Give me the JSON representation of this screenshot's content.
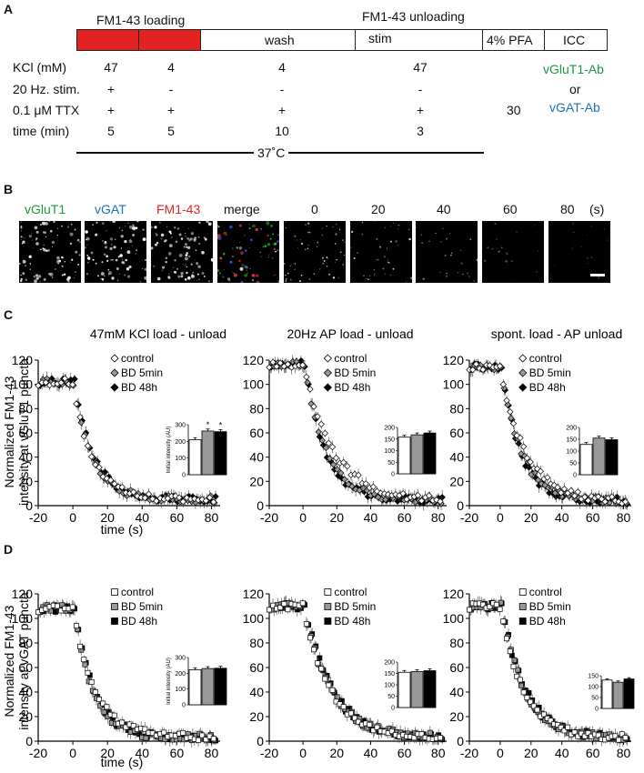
{
  "panelA": {
    "letter": "A",
    "loading_label": "FM1-43 loading",
    "unloading_label": "FM1-43 unloading",
    "boxes": [
      "",
      "",
      "wash",
      "stim",
      "4% PFA",
      "ICC"
    ],
    "row_labels": [
      "KCl (mM)",
      "20 Hz. stim.",
      "0.1 μM TTX",
      "time (min)"
    ],
    "columns": [
      [
        "47",
        "+",
        "+",
        "5"
      ],
      [
        "4",
        "-",
        "+",
        "5"
      ],
      [
        "4",
        "-",
        "+",
        "10"
      ],
      [
        "47",
        "-",
        "+",
        "3"
      ]
    ],
    "pfa_time": "30",
    "ab1": "vGluT1-Ab",
    "ab_or": "or",
    "ab2": "vGAT-Ab",
    "temperature": "37˚C",
    "colors": {
      "red": "#e32222",
      "green": "#1a9a3a",
      "blue": "#1f6fb5"
    }
  },
  "panelB": {
    "letter": "B",
    "labels": [
      "vGluT1",
      "vGAT",
      "FM1-43",
      "merge",
      "0",
      "20",
      "40",
      "60",
      "80"
    ],
    "unit": "(s)",
    "label_colors": [
      "#1a9a3a",
      "#1f6fb5",
      "#e32222",
      "#111",
      "#111",
      "#111",
      "#111",
      "#111",
      "#111"
    ]
  },
  "panelC": {
    "letter": "C",
    "ylabel_line1": "Normalized FM1-43",
    "ylabel_line2": "intensity at vGluT1 puncta",
    "xlabel": "time (s)"
  },
  "panelD": {
    "letter": "D",
    "ylabel_line1": "Normalized FM1-43",
    "ylabel_line2": "intensity at vGAT puncta",
    "xlabel": "time (s)"
  },
  "chart_data": [
    {
      "id": "C1",
      "type": "scatter",
      "title": "47mM KCl load - unload",
      "xlim": [
        -20,
        85
      ],
      "ylim": [
        0,
        120
      ],
      "xticks": [
        -20,
        0,
        20,
        40,
        60,
        80
      ],
      "yticks": [
        0,
        20,
        40,
        60,
        80,
        100,
        120
      ],
      "legend": [
        "control",
        "BD 5min",
        "BD 48h"
      ],
      "marker": "diamond",
      "curve": {
        "baseline": 102,
        "t0": 0,
        "tau": [
          11,
          11,
          11
        ],
        "floor": 5
      },
      "inset": {
        "ylabel": "Initial intensity (AU)",
        "ylim": [
          0,
          300
        ],
        "yticks": [
          0,
          100,
          200,
          300
        ],
        "values": [
          210,
          262,
          258
        ],
        "sig": [
          "",
          "*",
          "*"
        ]
      }
    },
    {
      "id": "C2",
      "type": "scatter",
      "title": "20Hz AP load - unload",
      "xlim": [
        -20,
        85
      ],
      "ylim": [
        0,
        120
      ],
      "xticks": [
        -20,
        0,
        20,
        40,
        60,
        80
      ],
      "yticks": [
        0,
        20,
        40,
        60,
        80,
        100,
        120
      ],
      "legend": [
        "control",
        "BD 5min",
        "BD 48h"
      ],
      "marker": "diamond",
      "curve": {
        "baseline": 117,
        "t0": 0,
        "tau": [
          18,
          13,
          12
        ],
        "floor": 4
      },
      "inset": {
        "ylabel": "",
        "ylim": [
          0,
          200
        ],
        "yticks": [
          0,
          50,
          100,
          150,
          200
        ],
        "values": [
          158,
          168,
          176
        ],
        "sig": [
          "",
          "",
          ""
        ]
      }
    },
    {
      "id": "C3",
      "type": "scatter",
      "title": "spont. load - AP unload",
      "xlim": [
        -20,
        85
      ],
      "ylim": [
        0,
        120
      ],
      "xticks": [
        -20,
        0,
        20,
        40,
        60,
        80
      ],
      "yticks": [
        0,
        20,
        40,
        60,
        80,
        100,
        120
      ],
      "legend": [
        "control",
        "BD 5min",
        "BD 48h"
      ],
      "marker": "diamond",
      "curve": {
        "baseline": 115,
        "t0": 0,
        "tau": [
          16,
          13,
          12
        ],
        "floor": 4
      },
      "inset": {
        "ylabel": "",
        "ylim": [
          0,
          200
        ],
        "yticks": [
          0,
          50,
          100,
          150,
          200
        ],
        "values": [
          128,
          155,
          148
        ],
        "sig": [
          "",
          "",
          ""
        ]
      }
    },
    {
      "id": "D1",
      "type": "scatter",
      "title": "",
      "xlim": [
        -20,
        85
      ],
      "ylim": [
        0,
        120
      ],
      "xticks": [
        -20,
        0,
        20,
        40,
        60,
        80
      ],
      "yticks": [
        0,
        20,
        40,
        60,
        80,
        100,
        120
      ],
      "legend": [
        "control",
        "BD 5min",
        "BD 48h"
      ],
      "marker": "square",
      "curve": {
        "baseline": 108,
        "t0": 0,
        "tau": [
          13,
          11,
          11
        ],
        "floor": 3
      },
      "inset": {
        "ylabel": "Initial intensity (AU)",
        "ylim": [
          0,
          300
        ],
        "yticks": [
          0,
          100,
          200,
          300
        ],
        "values": [
          222,
          230,
          232
        ],
        "sig": [
          "",
          "",
          ""
        ]
      }
    },
    {
      "id": "D2",
      "type": "scatter",
      "title": "",
      "xlim": [
        -20,
        85
      ],
      "ylim": [
        0,
        120
      ],
      "xticks": [
        -20,
        0,
        20,
        40,
        60,
        80
      ],
      "yticks": [
        0,
        20,
        40,
        60,
        80,
        100,
        120
      ],
      "legend": [
        "control",
        "BD 5min",
        "BD 48h"
      ],
      "marker": "square",
      "curve": {
        "baseline": 110,
        "t0": 0,
        "tau": [
          16,
          16,
          16
        ],
        "floor": 3
      },
      "inset": {
        "ylabel": "",
        "ylim": [
          0,
          200
        ],
        "yticks": [
          0,
          50,
          100,
          150,
          200
        ],
        "values": [
          155,
          158,
          162
        ],
        "sig": [
          "",
          "",
          ""
        ]
      }
    },
    {
      "id": "D3",
      "type": "scatter",
      "title": "",
      "xlim": [
        -20,
        85
      ],
      "ylim": [
        0,
        120
      ],
      "xticks": [
        -20,
        0,
        20,
        40,
        60,
        80
      ],
      "yticks": [
        0,
        20,
        40,
        60,
        80,
        100,
        120
      ],
      "legend": [
        "control",
        "BD 5min",
        "BD 48h"
      ],
      "marker": "square",
      "curve": {
        "baseline": 110,
        "t0": 0,
        "tau": [
          15,
          15,
          15
        ],
        "floor": 3
      },
      "inset": {
        "ylabel": "",
        "ylim": [
          0,
          150
        ],
        "yticks": [
          0,
          50,
          100,
          150
        ],
        "values": [
          130,
          120,
          135
        ],
        "sig": [
          "",
          "",
          ""
        ]
      }
    }
  ]
}
